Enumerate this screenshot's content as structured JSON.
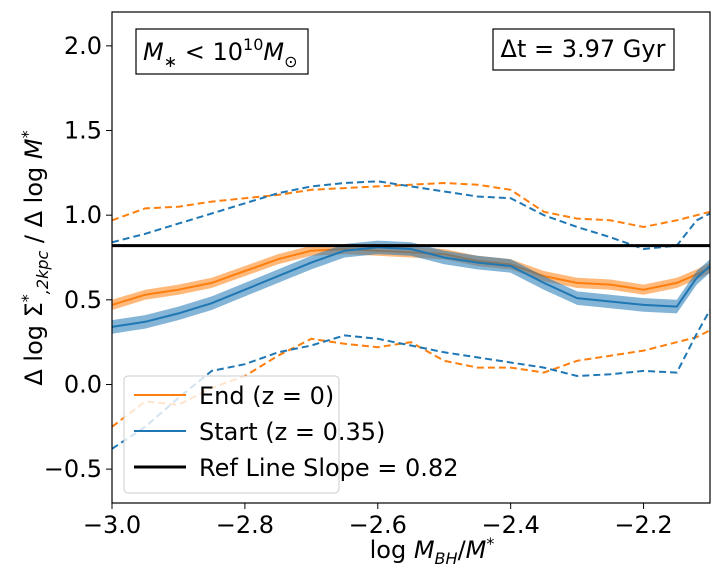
{
  "chart_data": {
    "type": "line",
    "xlabel": "log M_BH/M_*",
    "ylabel": "Δ log Σ_*,2kpc / Δ log M_*",
    "xlim": [
      -3.0,
      -2.1
    ],
    "ylim": [
      -0.7,
      2.2
    ],
    "xticks": [
      -3.0,
      -2.8,
      -2.6,
      -2.4,
      -2.2
    ],
    "xtick_labels": [
      "−3.0",
      "−2.8",
      "−2.6",
      "−2.4",
      "−2.2"
    ],
    "yticks": [
      -0.5,
      0.0,
      0.5,
      1.0,
      1.5,
      2.0
    ],
    "ytick_labels": [
      "−0.5",
      "0.0",
      "0.5",
      "1.0",
      "1.5",
      "2.0"
    ],
    "annotations": {
      "mass_cut": "M_* < 10^10 M_⊙",
      "delta_t": "Δt = 3.97 Gyr"
    },
    "legend": {
      "placement": "lower-left",
      "entries": [
        "End (z = 0)",
        "Start (z = 0.35)",
        "Ref Line Slope = 0.82"
      ]
    },
    "ref_line": {
      "name": "Ref Line Slope = 0.82",
      "y": 0.82,
      "color": "#000000"
    },
    "series": [
      {
        "name": "End (z = 0)",
        "color": "#ff7f0e",
        "x": [
          -3.0,
          -2.95,
          -2.9,
          -2.85,
          -2.8,
          -2.75,
          -2.7,
          -2.65,
          -2.6,
          -2.55,
          -2.5,
          -2.45,
          -2.4,
          -2.35,
          -2.3,
          -2.25,
          -2.2,
          -2.15,
          -2.12,
          -2.1
        ],
        "median": [
          0.47,
          0.53,
          0.56,
          0.6,
          0.67,
          0.74,
          0.79,
          0.8,
          0.79,
          0.78,
          0.77,
          0.73,
          0.71,
          0.64,
          0.6,
          0.59,
          0.56,
          0.6,
          0.65,
          0.69
        ],
        "band": 0.03,
        "upper": [
          0.97,
          1.04,
          1.05,
          1.08,
          1.1,
          1.12,
          1.15,
          1.16,
          1.17,
          1.18,
          1.19,
          1.18,
          1.15,
          1.02,
          0.98,
          0.97,
          0.93,
          0.97,
          1.0,
          1.02
        ],
        "lower": [
          -0.25,
          -0.1,
          -0.12,
          -0.02,
          0.05,
          0.17,
          0.27,
          0.24,
          0.22,
          0.25,
          0.14,
          0.1,
          0.1,
          0.07,
          0.14,
          0.17,
          0.2,
          0.25,
          0.28,
          0.32
        ]
      },
      {
        "name": "Start (z = 0.35)",
        "color": "#1f77b4",
        "x": [
          -3.0,
          -2.95,
          -2.9,
          -2.85,
          -2.8,
          -2.75,
          -2.7,
          -2.65,
          -2.6,
          -2.55,
          -2.5,
          -2.45,
          -2.4,
          -2.35,
          -2.3,
          -2.25,
          -2.2,
          -2.15,
          -2.12,
          -2.1
        ],
        "median": [
          0.34,
          0.37,
          0.42,
          0.48,
          0.56,
          0.64,
          0.72,
          0.79,
          0.81,
          0.8,
          0.75,
          0.72,
          0.7,
          0.6,
          0.51,
          0.49,
          0.47,
          0.46,
          0.63,
          0.7
        ],
        "band": 0.04,
        "upper": [
          0.84,
          0.89,
          0.95,
          1.01,
          1.07,
          1.13,
          1.17,
          1.19,
          1.2,
          1.17,
          1.14,
          1.11,
          1.1,
          1.0,
          0.93,
          0.87,
          0.8,
          0.82,
          0.97,
          1.01
        ],
        "lower": [
          -0.38,
          -0.25,
          -0.08,
          0.08,
          0.12,
          0.19,
          0.23,
          0.29,
          0.27,
          0.23,
          0.19,
          0.16,
          0.13,
          0.1,
          0.05,
          0.06,
          0.08,
          0.07,
          0.3,
          0.44
        ]
      }
    ]
  }
}
